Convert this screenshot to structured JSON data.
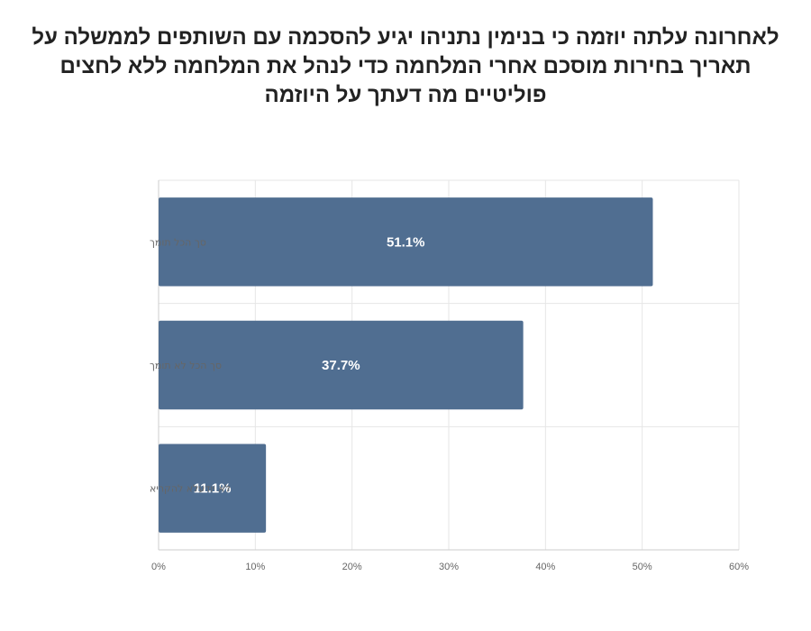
{
  "chart_data": {
    "type": "bar",
    "orientation": "horizontal",
    "title": "לאחרונה עלתה יוזמה כי בנימין נתניהו יגיע להסכמה עם השותפים לממשלה על תאריך בחירות מוסכם אחרי המלחמה כדי לנהל את המלחמה ללא לחצים פוליטיים מה דעתך על היוזמה",
    "categories": [
      "סך הכל תומך",
      "סך הכל לא תומך",
      "לא יודעלא להקריא"
    ],
    "values": [
      51.1,
      37.7,
      11.1
    ],
    "value_labels": [
      "51.1%",
      "37.7%",
      "11.1%"
    ],
    "xlim": [
      0,
      60
    ],
    "x_ticks": [
      0,
      10,
      20,
      30,
      40,
      50,
      60
    ],
    "x_tick_labels": [
      "0%",
      "10%",
      "20%",
      "30%",
      "40%",
      "50%",
      "60%"
    ],
    "grid": true,
    "legend": "none",
    "bar_color": "#506e91",
    "grid_color": "#e6e6e6",
    "axis_color": "#cccccc"
  }
}
